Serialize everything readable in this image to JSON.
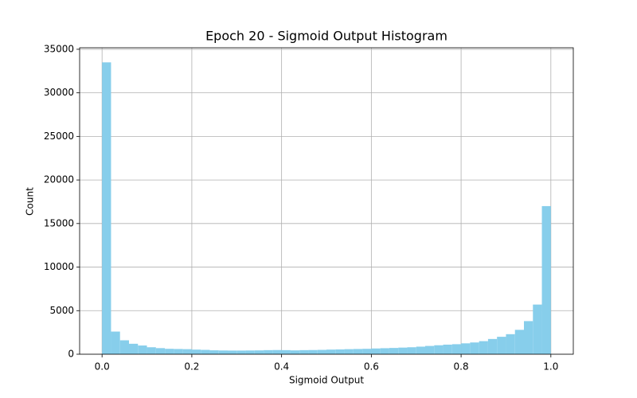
{
  "chart_data": {
    "type": "histogram",
    "title": "Epoch 20 - Sigmoid Output Histogram",
    "x_label": "Sigmoid Output",
    "y_label": "Count",
    "color": "#87ceeb",
    "grid": true,
    "bins": [
      0,
      0.02,
      0.04,
      0.06,
      0.08,
      0.1,
      0.12,
      0.14,
      0.16,
      0.18,
      0.2,
      0.22,
      0.24,
      0.26,
      0.28,
      0.3,
      0.32,
      0.34,
      0.36,
      0.38,
      0.4,
      0.42,
      0.44,
      0.46,
      0.48,
      0.5,
      0.52,
      0.54,
      0.56,
      0.58,
      0.6,
      0.62,
      0.64,
      0.66,
      0.68,
      0.7,
      0.72,
      0.74,
      0.76,
      0.78,
      0.8,
      0.82,
      0.84,
      0.86,
      0.88,
      0.9,
      0.92,
      0.94,
      0.96,
      0.98,
      1
    ],
    "counts": [
      33500,
      2600,
      1600,
      1200,
      1000,
      800,
      700,
      620,
      600,
      580,
      530,
      500,
      450,
      430,
      420,
      420,
      430,
      440,
      470,
      480,
      470,
      440,
      470,
      480,
      500,
      530,
      550,
      580,
      600,
      620,
      660,
      690,
      720,
      760,
      800,
      870,
      950,
      1030,
      1100,
      1150,
      1250,
      1350,
      1500,
      1750,
      2000,
      2300,
      2800,
      3800,
      5700,
      17000
    ],
    "xlim": [
      -0.05,
      1.05
    ],
    "ylim": [
      0,
      35175
    ],
    "xticks": [
      {
        "value": 0,
        "label": "0.0"
      },
      0.2,
      0.4,
      0.6,
      0.8,
      {
        "value": 1,
        "label": "1.0"
      }
    ],
    "yticks": [
      0,
      5000,
      10000,
      15000,
      20000,
      25000,
      30000,
      35000
    ]
  }
}
